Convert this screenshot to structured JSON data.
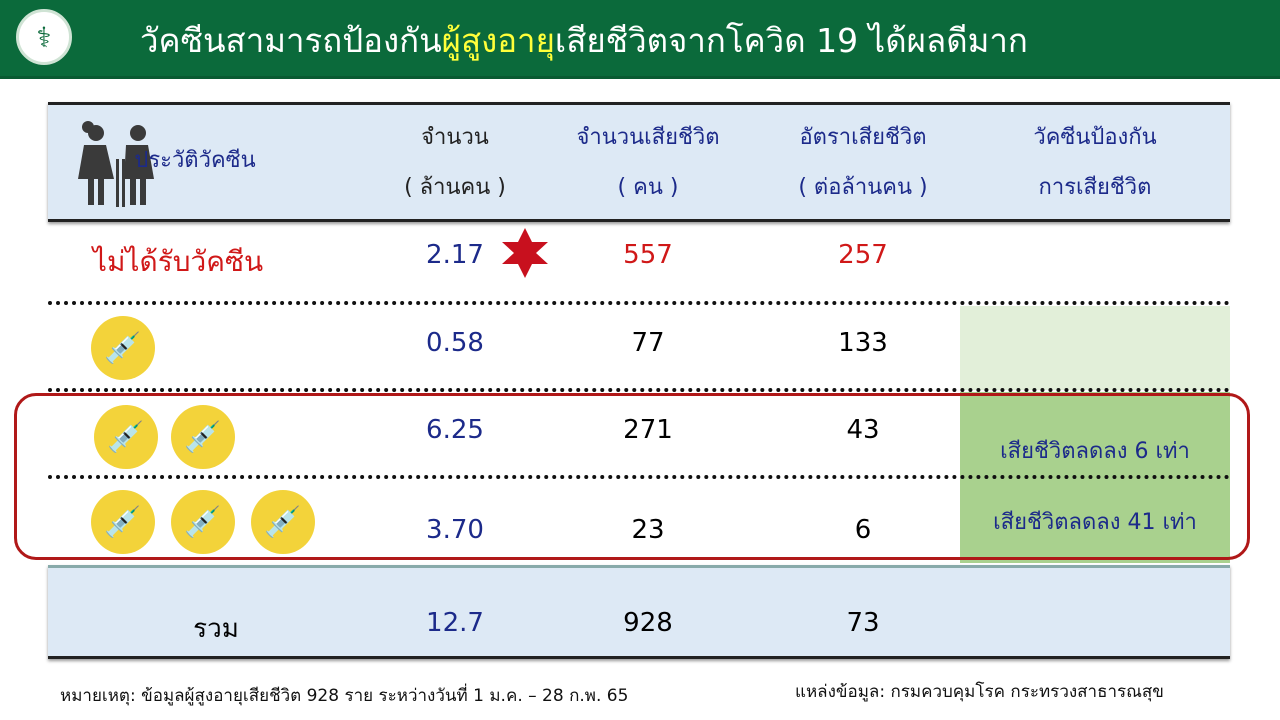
{
  "header": {
    "title_pre": "วัคซีนสามารถป้องกัน",
    "title_highlight": "ผู้สูงอายุ",
    "title_post": "เสียชีวิตจากโควิด 19 ได้ผลดีมาก",
    "colors": {
      "bar": "#0b6a3b",
      "highlight": "#ffff3a"
    }
  },
  "table": {
    "columns": [
      {
        "line1": "ประวัติวัคซีน",
        "line2": ""
      },
      {
        "line1": "จำนวน",
        "line2": "( ล้านคน )"
      },
      {
        "line1": "จำนวนเสียชีวิต",
        "line2": "( คน )"
      },
      {
        "line1": "อัตราเสียชีวิต",
        "line2": "( ต่อล้านคน )"
      },
      {
        "line1": "วัคซีนป้องกัน",
        "line2": "การเสียชีวิต"
      }
    ],
    "rows": [
      {
        "label": "ไม่ได้รับวัคซีน",
        "doses": 0,
        "population": "2.17",
        "deaths": "557",
        "rate": "257",
        "effect": ""
      },
      {
        "label": "",
        "doses": 1,
        "population": "0.58",
        "deaths": "77",
        "rate": "133",
        "effect": ""
      },
      {
        "label": "",
        "doses": 2,
        "population": "6.25",
        "deaths": "271",
        "rate": "43",
        "effect": "เสียชีวิตลดลง 6 เท่า"
      },
      {
        "label": "",
        "doses": 3,
        "population": "3.70",
        "deaths": "23",
        "rate": "6",
        "effect": "เสียชีวิตลดลง 41 เท่า"
      }
    ],
    "total": {
      "label": "รวม",
      "population": "12.7",
      "deaths": "928",
      "rate": "73"
    }
  },
  "icons": {
    "header": "elderly-couple-icon",
    "dose": "syringe-icon",
    "marker": "star-icon",
    "logo": "ministry-of-public-health-logo"
  },
  "footer": {
    "note": "หมายเหตุ: ข้อมูลผู้สูงอายุเสียชีวิต 928 ราย ระหว่างวันที่ 1 ม.ค. – 28 ก.พ. 65",
    "source": "แหล่งข้อมูล: กรมควบคุมโรค กระทรวงสาธารณสุข"
  }
}
